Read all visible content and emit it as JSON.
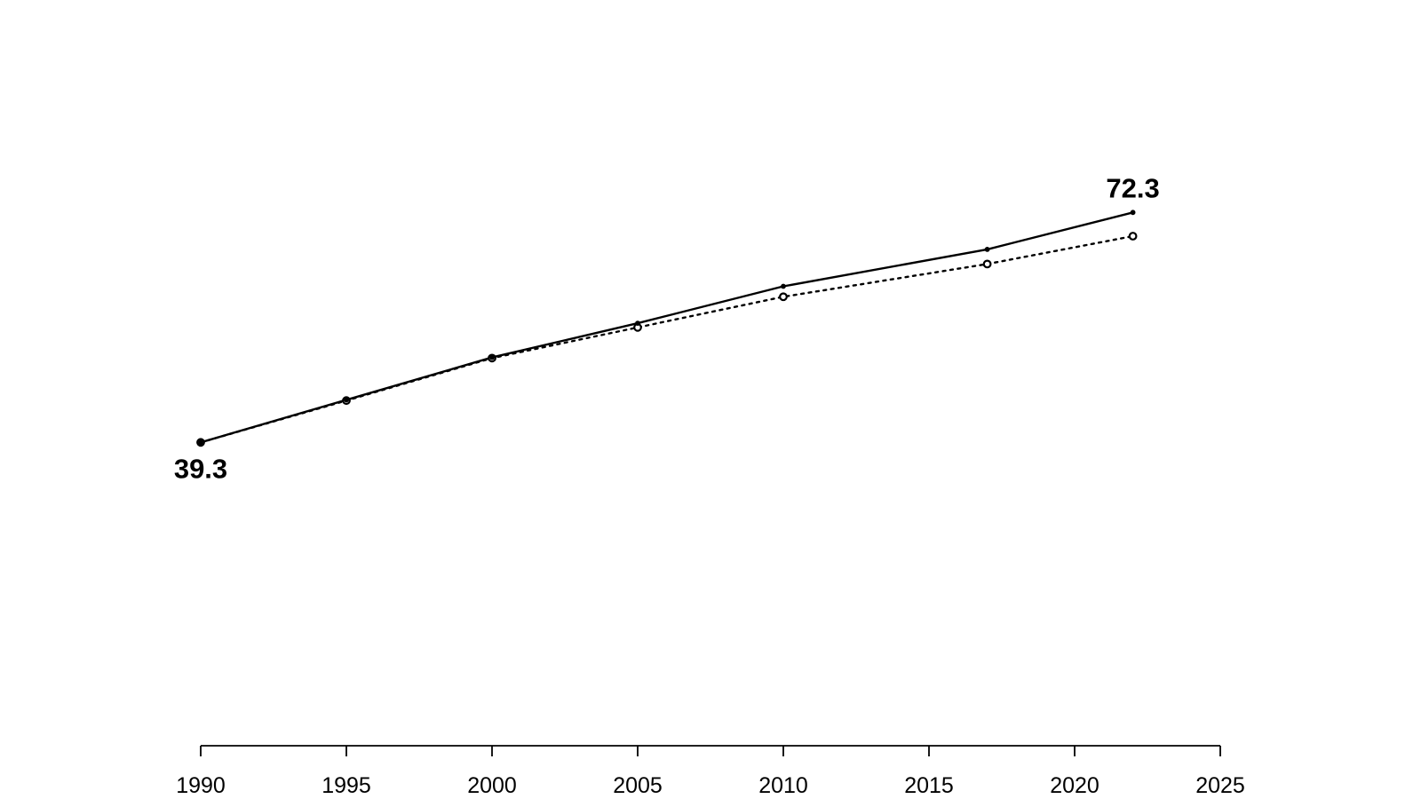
{
  "chart_data": {
    "type": "line",
    "title": "",
    "xlabel": "",
    "ylabel": "",
    "x": [
      1990,
      1995,
      2000,
      2005,
      2010,
      2017,
      2022
    ],
    "series": [
      {
        "name": "series-solid",
        "line_style": "solid",
        "marker": "filled-dot",
        "values": [
          39.3,
          45.4,
          51.5,
          56.4,
          61.7,
          67.0,
          72.3
        ]
      },
      {
        "name": "series-dotted",
        "line_style": "dotted",
        "marker": "open-circle",
        "values": [
          39.3,
          45.3,
          51.4,
          55.8,
          60.2,
          64.9,
          68.9
        ]
      }
    ],
    "annotations": [
      {
        "text": "39.3",
        "year": 1990,
        "value": 39.3,
        "position": "below"
      },
      {
        "text": "72.3",
        "year": 2022,
        "value": 72.3,
        "position": "above"
      }
    ],
    "x_ticks": [
      "1990",
      "1995",
      "2000",
      "2005",
      "2010",
      "2015",
      "2020",
      "2025"
    ],
    "x_tick_years": [
      1990,
      1995,
      2000,
      2005,
      2010,
      2015,
      2020,
      2025
    ],
    "xlim": [
      1990,
      2025
    ],
    "ylim": [
      39.3,
      72.3
    ],
    "y_axis_visible": false,
    "grid": false,
    "legend": null,
    "colors": {
      "foreground": "#000000",
      "background": "#ffffff"
    }
  }
}
